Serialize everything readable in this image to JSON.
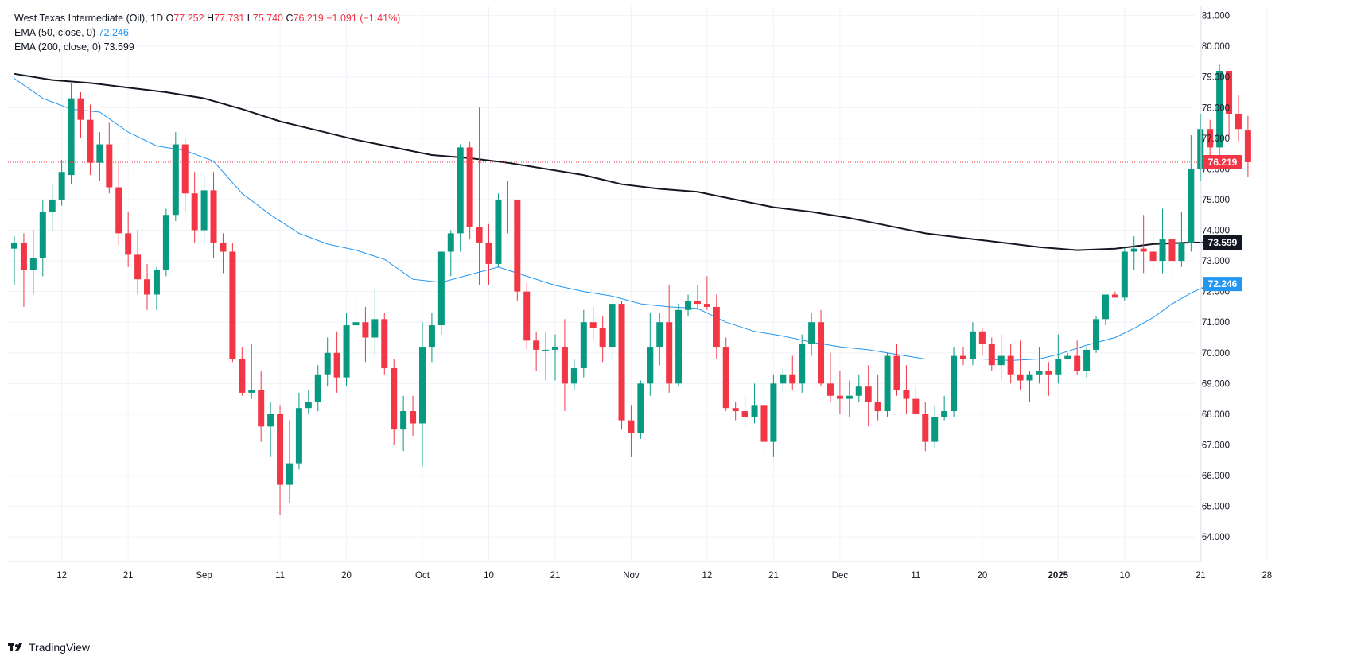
{
  "legend": {
    "instrument": "West Texas Intermediate (Oil), 1D",
    "open_label": "O",
    "open": "77.252",
    "high_label": "H",
    "high": "77.731",
    "low_label": "L",
    "low": "75.740",
    "close_label": "C",
    "close": "76.219",
    "change": "−1.091 (−1.41%)",
    "ema50_label": "EMA (50, close, 0)",
    "ema50_value": "72.246",
    "ema200_label": "EMA (200, close, 0)",
    "ema200_value": "73.599"
  },
  "brand": {
    "name": "TradingView",
    "logo_icon": "tradingview-logo-icon"
  },
  "colors": {
    "up": "#089981",
    "down": "#f23645",
    "ema50": "#2196f3",
    "ema200": "#131722",
    "grid": "#f0f3fa"
  },
  "chart_data": {
    "type": "candlestick",
    "y_range": [
      63.2,
      81.3
    ],
    "y_ticks": [
      "64.000",
      "65.000",
      "66.000",
      "67.000",
      "68.000",
      "69.000",
      "70.000",
      "71.000",
      "72.000",
      "73.000",
      "74.000",
      "75.000",
      "76.000",
      "77.000",
      "78.000",
      "79.000",
      "80.000",
      "81.000"
    ],
    "x_ticks": [
      {
        "label": "12",
        "i": 5
      },
      {
        "label": "21",
        "i": 12
      },
      {
        "label": "Sep",
        "i": 20
      },
      {
        "label": "11",
        "i": 28
      },
      {
        "label": "20",
        "i": 35
      },
      {
        "label": "Oct",
        "i": 43
      },
      {
        "label": "10",
        "i": 50
      },
      {
        "label": "21",
        "i": 57
      },
      {
        "label": "Nov",
        "i": 65
      },
      {
        "label": "12",
        "i": 73
      },
      {
        "label": "21",
        "i": 80
      },
      {
        "label": "Dec",
        "i": 87
      },
      {
        "label": "11",
        "i": 95
      },
      {
        "label": "20",
        "i": 102
      },
      {
        "label": "2025",
        "i": 110
      },
      {
        "label": "10",
        "i": 117
      },
      {
        "label": "21",
        "i": 125
      },
      {
        "label": "28",
        "i": 132
      }
    ],
    "price_labels": [
      {
        "value": "76.219",
        "y": 76.219,
        "bg": "#f23645",
        "fg": "#ffffff"
      },
      {
        "value": "73.599",
        "y": 73.599,
        "bg": "#131722",
        "fg": "#ffffff"
      },
      {
        "value": "72.246",
        "y": 72.246,
        "bg": "#2196f3",
        "fg": "#ffffff"
      }
    ],
    "current_price_line": 76.219,
    "candles": [
      [
        73.4,
        73.8,
        72.2,
        73.6
      ],
      [
        73.6,
        73.9,
        71.5,
        72.7
      ],
      [
        72.7,
        74.0,
        71.9,
        73.1
      ],
      [
        73.1,
        75.0,
        72.5,
        74.6
      ],
      [
        74.6,
        75.5,
        74.0,
        75.0
      ],
      [
        75.0,
        76.3,
        74.8,
        75.9
      ],
      [
        75.8,
        78.8,
        75.5,
        78.3
      ],
      [
        78.3,
        78.5,
        77.0,
        77.6
      ],
      [
        77.6,
        78.1,
        75.8,
        76.2
      ],
      [
        76.2,
        77.2,
        75.6,
        76.8
      ],
      [
        76.8,
        77.5,
        75.2,
        75.4
      ],
      [
        75.4,
        76.2,
        73.5,
        73.9
      ],
      [
        73.9,
        74.6,
        72.8,
        73.2
      ],
      [
        73.2,
        74.0,
        71.9,
        72.4
      ],
      [
        72.4,
        72.9,
        71.4,
        71.9
      ],
      [
        71.9,
        72.8,
        71.4,
        72.7
      ],
      [
        72.7,
        74.7,
        72.5,
        74.5
      ],
      [
        74.5,
        77.2,
        74.3,
        76.8
      ],
      [
        76.8,
        77.0,
        74.6,
        75.2
      ],
      [
        75.2,
        75.9,
        73.6,
        74.0
      ],
      [
        74.0,
        75.8,
        73.5,
        75.3
      ],
      [
        75.3,
        75.9,
        73.1,
        73.6
      ],
      [
        73.6,
        73.9,
        72.6,
        73.3
      ],
      [
        73.3,
        73.6,
        69.7,
        69.8
      ],
      [
        69.8,
        70.2,
        68.6,
        68.7
      ],
      [
        68.7,
        70.3,
        68.5,
        68.8
      ],
      [
        68.8,
        69.4,
        67.1,
        67.6
      ],
      [
        67.6,
        68.4,
        66.6,
        68.0
      ],
      [
        68.0,
        68.3,
        64.7,
        65.7
      ],
      [
        65.7,
        67.8,
        65.1,
        66.4
      ],
      [
        66.4,
        68.7,
        66.2,
        68.2
      ],
      [
        68.2,
        68.8,
        68.0,
        68.4
      ],
      [
        68.4,
        69.6,
        68.1,
        69.3
      ],
      [
        69.3,
        70.5,
        68.9,
        70.0
      ],
      [
        70.0,
        70.7,
        68.7,
        69.2
      ],
      [
        69.2,
        71.3,
        68.9,
        70.9
      ],
      [
        70.9,
        71.9,
        70.6,
        71.0
      ],
      [
        71.0,
        71.5,
        69.7,
        70.5
      ],
      [
        70.5,
        72.1,
        69.9,
        71.1
      ],
      [
        71.1,
        71.3,
        69.3,
        69.5
      ],
      [
        69.5,
        69.8,
        67.0,
        67.5
      ],
      [
        67.5,
        68.6,
        66.8,
        68.1
      ],
      [
        68.1,
        68.6,
        67.3,
        67.7
      ],
      [
        67.7,
        71.0,
        66.3,
        70.2
      ],
      [
        70.2,
        71.3,
        69.7,
        70.9
      ],
      [
        70.9,
        73.3,
        70.6,
        73.3
      ],
      [
        73.3,
        74.0,
        72.5,
        73.9
      ],
      [
        73.9,
        76.8,
        73.3,
        76.7
      ],
      [
        76.7,
        76.9,
        73.7,
        74.1
      ],
      [
        74.1,
        78.0,
        72.2,
        73.6
      ],
      [
        73.6,
        74.2,
        72.2,
        72.9
      ],
      [
        72.9,
        75.2,
        72.8,
        75.0
      ],
      [
        75.0,
        75.6,
        73.9,
        75.0
      ],
      [
        75.0,
        75.0,
        71.7,
        72.0
      ],
      [
        72.0,
        72.3,
        70.1,
        70.4
      ],
      [
        70.4,
        70.7,
        69.4,
        70.1
      ],
      [
        70.1,
        70.7,
        69.1,
        70.1
      ],
      [
        70.1,
        70.6,
        69.1,
        70.2
      ],
      [
        70.2,
        71.1,
        68.1,
        69.0
      ],
      [
        69.0,
        69.8,
        68.8,
        69.5
      ],
      [
        69.5,
        71.4,
        69.2,
        71.0
      ],
      [
        71.0,
        71.5,
        70.4,
        70.8
      ],
      [
        70.8,
        71.2,
        69.7,
        70.2
      ],
      [
        70.2,
        71.8,
        69.8,
        71.6
      ],
      [
        71.6,
        71.7,
        67.5,
        67.8
      ],
      [
        67.8,
        68.3,
        66.6,
        67.4
      ],
      [
        67.4,
        69.1,
        67.2,
        69.0
      ],
      [
        69.0,
        71.3,
        68.6,
        70.2
      ],
      [
        70.2,
        71.3,
        69.6,
        71.0
      ],
      [
        71.0,
        72.2,
        68.7,
        69.0
      ],
      [
        69.0,
        71.6,
        68.9,
        71.4
      ],
      [
        71.4,
        71.9,
        71.2,
        71.7
      ],
      [
        71.7,
        72.2,
        71.4,
        71.6
      ],
      [
        71.6,
        72.5,
        71.4,
        71.5
      ],
      [
        71.5,
        71.9,
        69.8,
        70.2
      ],
      [
        70.2,
        70.5,
        68.1,
        68.2
      ],
      [
        68.2,
        68.4,
        67.8,
        68.1
      ],
      [
        68.1,
        68.6,
        67.6,
        67.9
      ],
      [
        67.9,
        69.0,
        67.7,
        68.3
      ],
      [
        68.3,
        68.9,
        66.7,
        67.1
      ],
      [
        67.1,
        69.3,
        66.6,
        69.0
      ],
      [
        69.0,
        69.5,
        68.7,
        69.3
      ],
      [
        69.3,
        69.9,
        68.8,
        69.0
      ],
      [
        69.0,
        70.6,
        68.7,
        70.3
      ],
      [
        70.3,
        71.3,
        69.9,
        71.0
      ],
      [
        71.0,
        71.4,
        68.9,
        69.0
      ],
      [
        69.0,
        70.0,
        68.4,
        68.6
      ],
      [
        68.6,
        69.4,
        68.0,
        68.5
      ],
      [
        68.5,
        69.1,
        67.9,
        68.6
      ],
      [
        68.6,
        69.3,
        68.4,
        68.9
      ],
      [
        68.9,
        69.6,
        67.6,
        68.4
      ],
      [
        68.4,
        69.3,
        67.8,
        68.1
      ],
      [
        68.1,
        70.0,
        67.9,
        69.9
      ],
      [
        69.9,
        70.3,
        68.6,
        68.8
      ],
      [
        68.8,
        69.6,
        68.0,
        68.5
      ],
      [
        68.5,
        68.9,
        67.9,
        68.0
      ],
      [
        68.0,
        68.4,
        66.8,
        67.1
      ],
      [
        67.1,
        68.3,
        66.9,
        67.9
      ],
      [
        67.9,
        68.6,
        67.8,
        68.1
      ],
      [
        68.1,
        70.2,
        67.9,
        69.9
      ],
      [
        69.9,
        70.2,
        69.6,
        69.8
      ],
      [
        69.8,
        71.0,
        69.6,
        70.7
      ],
      [
        70.7,
        70.8,
        69.9,
        70.3
      ],
      [
        70.3,
        70.5,
        69.4,
        69.6
      ],
      [
        69.6,
        70.6,
        69.1,
        69.9
      ],
      [
        69.9,
        70.3,
        69.0,
        69.3
      ],
      [
        69.3,
        70.4,
        68.8,
        69.1
      ],
      [
        69.1,
        69.4,
        68.4,
        69.3
      ],
      [
        69.3,
        70.2,
        69.0,
        69.4
      ],
      [
        69.4,
        69.7,
        68.6,
        69.3
      ],
      [
        69.3,
        70.6,
        69.0,
        69.8
      ],
      [
        69.8,
        70.0,
        69.8,
        69.9
      ],
      [
        69.9,
        70.4,
        69.3,
        69.4
      ],
      [
        69.4,
        70.2,
        69.2,
        70.1
      ],
      [
        70.1,
        71.2,
        70.0,
        71.1
      ],
      [
        71.1,
        71.8,
        70.9,
        71.9
      ],
      [
        71.9,
        72.0,
        71.8,
        71.8
      ],
      [
        71.8,
        73.4,
        71.7,
        73.3
      ],
      [
        73.3,
        73.8,
        72.7,
        73.4
      ],
      [
        73.4,
        74.5,
        72.6,
        73.3
      ],
      [
        73.3,
        73.9,
        72.7,
        73.0
      ],
      [
        73.0,
        74.7,
        72.6,
        73.7
      ],
      [
        73.7,
        73.9,
        72.3,
        73.0
      ],
      [
        73.0,
        74.6,
        72.8,
        73.6
      ],
      [
        73.6,
        77.1,
        73.3,
        76.0
      ],
      [
        76.0,
        77.8,
        75.6,
        77.3
      ],
      [
        77.3,
        77.6,
        76.4,
        76.7
      ],
      [
        76.7,
        79.4,
        76.2,
        79.2
      ],
      [
        79.2,
        79.2,
        77.0,
        77.8
      ],
      [
        77.8,
        78.4,
        76.9,
        77.3
      ],
      [
        77.252,
        77.731,
        75.74,
        76.219
      ]
    ],
    "ema50": [
      [
        0,
        78.95
      ],
      [
        3,
        78.3
      ],
      [
        6,
        77.95
      ],
      [
        9,
        77.85
      ],
      [
        12,
        77.2
      ],
      [
        15,
        76.75
      ],
      [
        18,
        76.6
      ],
      [
        21,
        76.25
      ],
      [
        24,
        75.2
      ],
      [
        27,
        74.5
      ],
      [
        30,
        73.9
      ],
      [
        33,
        73.55
      ],
      [
        36,
        73.35
      ],
      [
        39,
        73.05
      ],
      [
        42,
        72.4
      ],
      [
        45,
        72.3
      ],
      [
        48,
        72.55
      ],
      [
        51,
        72.8
      ],
      [
        54,
        72.5
      ],
      [
        57,
        72.2
      ],
      [
        60,
        72.0
      ],
      [
        63,
        71.85
      ],
      [
        66,
        71.6
      ],
      [
        69,
        71.5
      ],
      [
        72,
        71.45
      ],
      [
        75,
        71.0
      ],
      [
        78,
        70.7
      ],
      [
        81,
        70.55
      ],
      [
        84,
        70.35
      ],
      [
        87,
        70.2
      ],
      [
        90,
        70.1
      ],
      [
        93,
        69.95
      ],
      [
        96,
        69.8
      ],
      [
        99,
        69.8
      ],
      [
        102,
        69.8
      ],
      [
        105,
        69.75
      ],
      [
        108,
        69.8
      ],
      [
        110,
        69.95
      ],
      [
        113,
        70.25
      ],
      [
        116,
        70.5
      ],
      [
        118,
        70.8
      ],
      [
        120,
        71.15
      ],
      [
        122,
        71.6
      ],
      [
        124,
        71.95
      ],
      [
        126,
        72.246
      ]
    ],
    "ema200": [
      [
        0,
        79.1
      ],
      [
        4,
        78.9
      ],
      [
        8,
        78.8
      ],
      [
        12,
        78.65
      ],
      [
        16,
        78.5
      ],
      [
        20,
        78.3
      ],
      [
        24,
        77.95
      ],
      [
        28,
        77.55
      ],
      [
        32,
        77.25
      ],
      [
        36,
        76.95
      ],
      [
        40,
        76.7
      ],
      [
        44,
        76.45
      ],
      [
        48,
        76.35
      ],
      [
        52,
        76.2
      ],
      [
        56,
        76.0
      ],
      [
        60,
        75.8
      ],
      [
        64,
        75.5
      ],
      [
        68,
        75.35
      ],
      [
        72,
        75.25
      ],
      [
        76,
        75.0
      ],
      [
        80,
        74.75
      ],
      [
        84,
        74.6
      ],
      [
        88,
        74.4
      ],
      [
        92,
        74.15
      ],
      [
        96,
        73.9
      ],
      [
        100,
        73.75
      ],
      [
        104,
        73.6
      ],
      [
        108,
        73.45
      ],
      [
        112,
        73.35
      ],
      [
        116,
        73.4
      ],
      [
        120,
        73.55
      ],
      [
        124,
        73.6
      ],
      [
        126,
        73.599
      ]
    ]
  }
}
